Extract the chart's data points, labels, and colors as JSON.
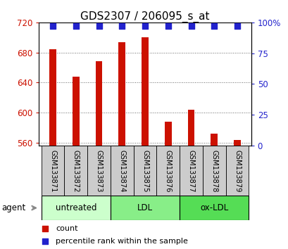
{
  "title": "GDS2307 / 206095_s_at",
  "samples": [
    "GSM133871",
    "GSM133872",
    "GSM133873",
    "GSM133874",
    "GSM133875",
    "GSM133876",
    "GSM133877",
    "GSM133878",
    "GSM133879"
  ],
  "counts": [
    684,
    648,
    668,
    694,
    700,
    588,
    604,
    572,
    564
  ],
  "percentiles": [
    97,
    97,
    97,
    97,
    97,
    97,
    97,
    97,
    97
  ],
  "ylim_left": [
    556,
    720
  ],
  "ylim_right": [
    0,
    100
  ],
  "yticks_left": [
    560,
    600,
    640,
    680,
    720
  ],
  "yticks_right": [
    0,
    25,
    50,
    75,
    100
  ],
  "yticklabels_right": [
    "0",
    "25",
    "50",
    "75",
    "100%"
  ],
  "bar_color": "#cc1100",
  "dot_color": "#2222cc",
  "grid_color": "#000000",
  "groups": [
    {
      "label": "untreated",
      "start": 0,
      "end": 3,
      "color": "#ccffcc"
    },
    {
      "label": "LDL",
      "start": 3,
      "end": 6,
      "color": "#88ee88"
    },
    {
      "label": "ox-LDL",
      "start": 6,
      "end": 9,
      "color": "#55dd55"
    }
  ],
  "agent_label": "agent",
  "legend_count_label": "count",
  "legend_percentile_label": "percentile rank within the sample",
  "bar_width": 0.3,
  "title_fontsize": 11,
  "axis_label_color_left": "#cc1100",
  "axis_label_color_right": "#2222cc",
  "label_box_color": "#cccccc",
  "figure_bg": "#ffffff"
}
